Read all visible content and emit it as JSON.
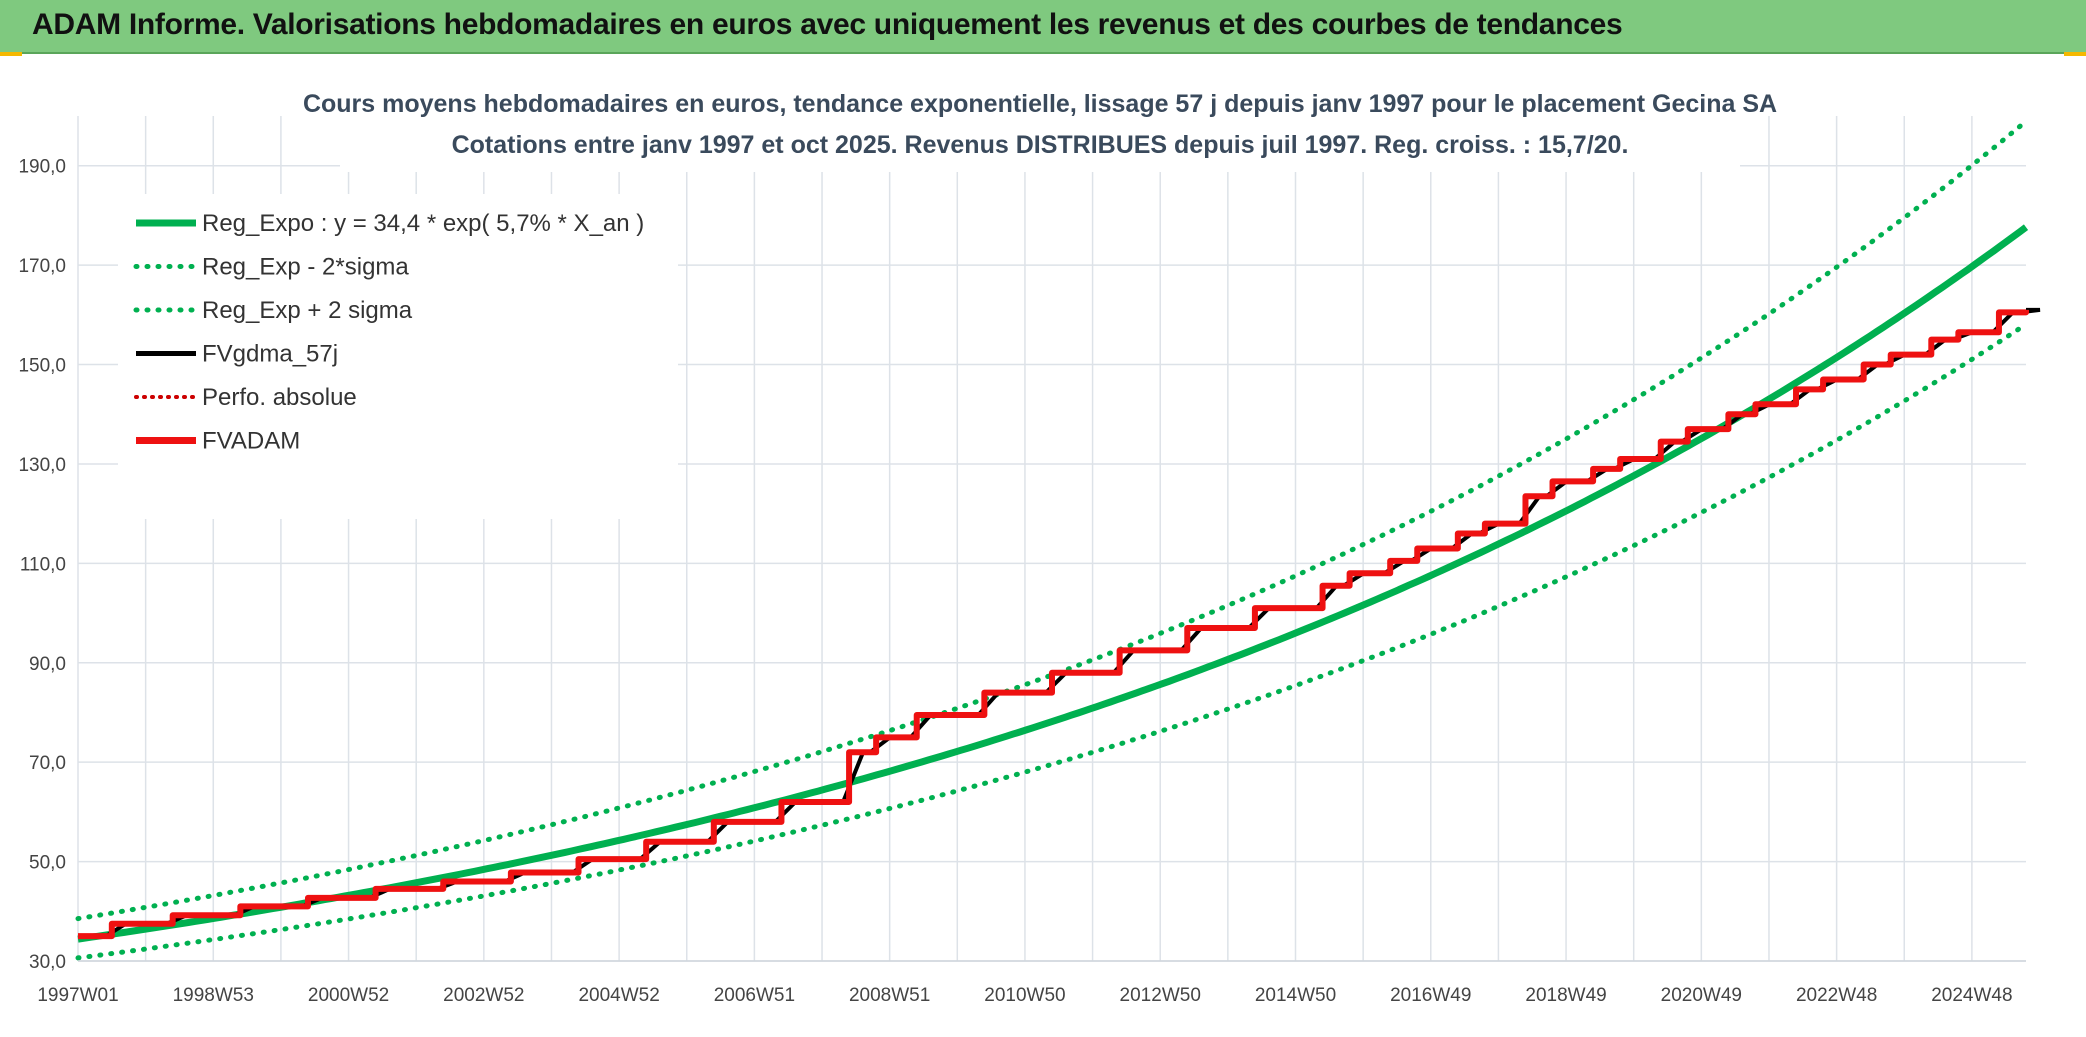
{
  "banner": {
    "title": "ADAM Informe. Valorisations hebdomadaires en euros avec uniquement les revenus et des courbes de tendances"
  },
  "colors": {
    "banner_bg": "#7fc97f",
    "trend_green": "#00b050",
    "fvadam_red": "#ee1111",
    "perfo_red": "#cc0000",
    "fvgdma_black": "#000000",
    "grid": "#dde2e8",
    "corner_accent": "#f5b800"
  },
  "chart_data": {
    "type": "line",
    "title": "Cours moyens hebdomadaires en euros, tendance exponentielle, lissage 57 j depuis janv 1997 pour le placement Gecina SA",
    "subtitle": "Cotations entre janv 1997 et oct 2025. Revenus DISTRIBUES depuis juil 1997. Reg. croiss. : 15,7/20.",
    "xlabel": "",
    "ylabel": "",
    "x_range_years": [
      1997.0,
      2025.8
    ],
    "x_tick_labels": [
      "1997W01",
      "1998W53",
      "2000W52",
      "2002W52",
      "2004W52",
      "2006W51",
      "2008W51",
      "2010W50",
      "2012W50",
      "2014W50",
      "2016W49",
      "2018W49",
      "2020W49",
      "2022W48",
      "2024W48"
    ],
    "y_ticks": [
      "30,0",
      "50,0",
      "70,0",
      "90,0",
      "110,0",
      "130,0",
      "150,0",
      "170,0",
      "190,0"
    ],
    "ylim": [
      30,
      200
    ],
    "grid": true,
    "legend_position": "top-left",
    "series": [
      {
        "name": "Reg_Expo : y = 34,4 * exp( 5,7% *  X_an )",
        "style": "solid-thick",
        "color": "#00b050",
        "formula": {
          "a": 34.4,
          "r": 0.057,
          "factor": 1.0
        }
      },
      {
        "name": "Reg_Exp - 2*sigma",
        "style": "dotted",
        "color": "#00b050",
        "formula": {
          "a": 34.4,
          "r": 0.057,
          "factor": 0.89
        }
      },
      {
        "name": "Reg_Exp + 2 sigma",
        "style": "dotted",
        "color": "#00b050",
        "formula": {
          "a": 34.4,
          "r": 0.057,
          "factor": 1.12
        }
      },
      {
        "name": "FVgdma_57j",
        "style": "solid",
        "color": "#000000"
      },
      {
        "name": "Perfo. absolue",
        "style": "dotted",
        "color": "#cc0000"
      },
      {
        "name": "FVADAM",
        "style": "solid-thick",
        "color": "#ee1111"
      }
    ],
    "fvadam_steps": {
      "years": [
        1997.0,
        1997.5,
        1998.4,
        1999.4,
        2000.4,
        2001.4,
        2002.4,
        2003.4,
        2004.4,
        2005.4,
        2006.4,
        2007.4,
        2008.4,
        2008.8,
        2009.4,
        2010.4,
        2011.4,
        2012.4,
        2013.4,
        2014.4,
        2015.4,
        2015.8,
        2016.4,
        2016.8,
        2017.4,
        2017.8,
        2018.4,
        2018.8,
        2019.4,
        2019.8,
        2020.4,
        2020.8,
        2021.4,
        2021.8,
        2022.4,
        2022.8,
        2023.4,
        2023.8,
        2024.4,
        2024.8,
        2025.4,
        2025.8
      ],
      "values": [
        35,
        37.5,
        39.2,
        41,
        42.7,
        44.5,
        46,
        47.8,
        50.5,
        54,
        58,
        62,
        72,
        75,
        79.5,
        84,
        88,
        92.5,
        97,
        101,
        105.5,
        108,
        110.5,
        113,
        116,
        118,
        123.5,
        126.5,
        129,
        131,
        134.5,
        137,
        140,
        142,
        145,
        147,
        150,
        152,
        155,
        156.5,
        160.5,
        161
      ]
    }
  }
}
